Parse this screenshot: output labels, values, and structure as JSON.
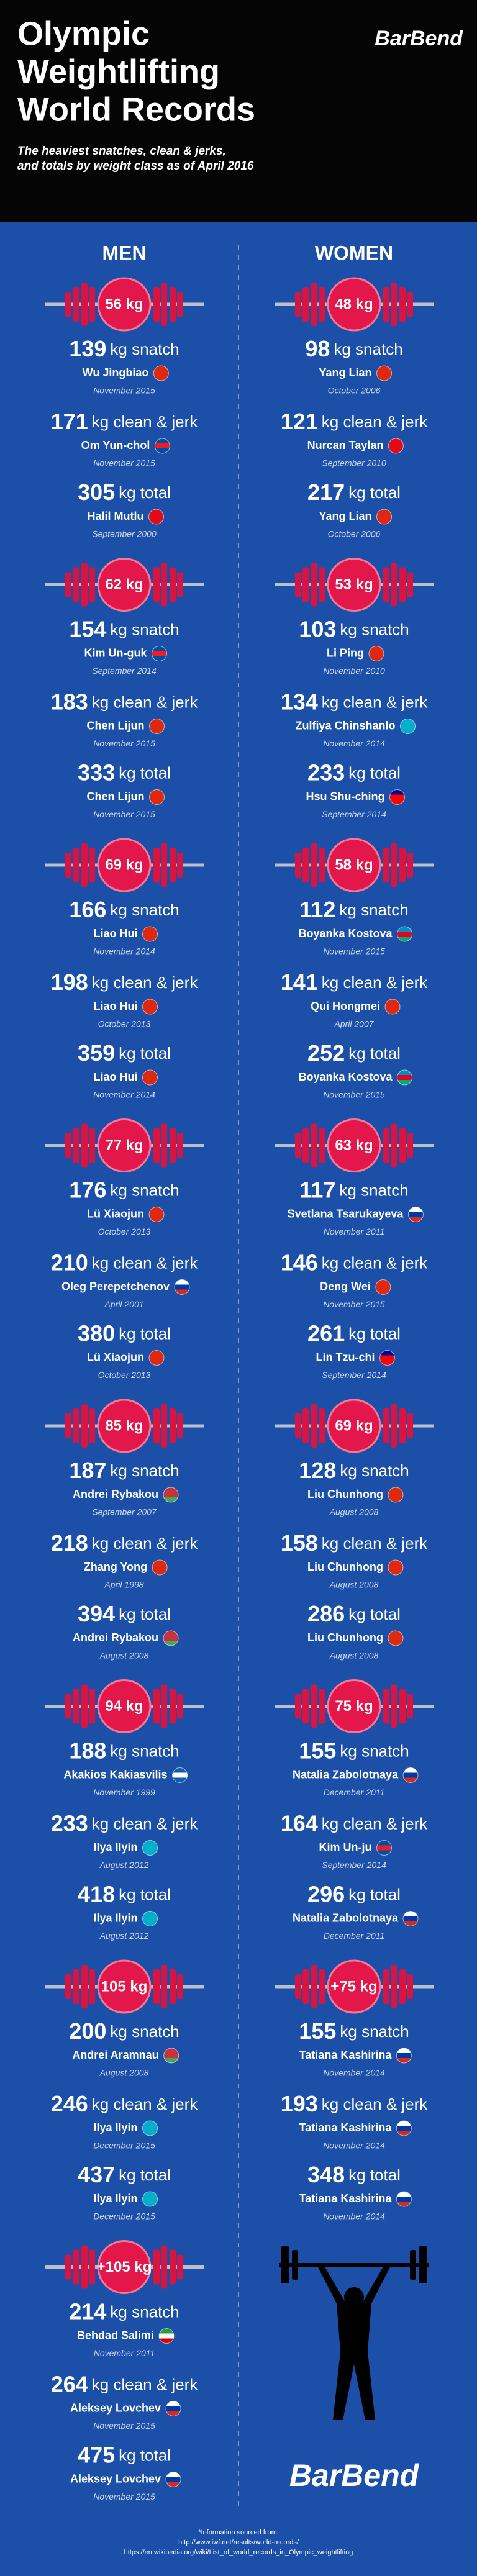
{
  "header": {
    "title": [
      "Olympic",
      "Weightlifting",
      "World Records"
    ],
    "logo": "BarBend",
    "subtitle": [
      "The heaviest snatches, clean & jerks,",
      "and totals by weight class as of April 2016"
    ]
  },
  "columns": [
    {
      "heading": "MEN",
      "classes": [
        {
          "class": "56 kg",
          "records": [
            {
              "value": 139,
              "lift": "kg snatch",
              "name": "Wu Jingbiao",
              "date": "November 2015",
              "flag": [
                "#de2910",
                "#de2910",
                "#de2910"
              ]
            },
            {
              "value": 171,
              "lift": "kg clean & jerk",
              "name": "Om Yun-chol",
              "date": "November 2015",
              "flag": [
                "#024fa2",
                "#ed1c27",
                "#024fa2"
              ]
            },
            {
              "value": 305,
              "lift": "kg total",
              "name": "Halil Mutlu",
              "date": "September 2000",
              "flag": [
                "#e30a17",
                "#e30a17",
                "#e30a17"
              ]
            }
          ]
        },
        {
          "class": "62 kg",
          "records": [
            {
              "value": 154,
              "lift": "kg snatch",
              "name": "Kim Un-guk",
              "date": "September 2014",
              "flag": [
                "#024fa2",
                "#ed1c27",
                "#024fa2"
              ]
            },
            {
              "value": 183,
              "lift": "kg clean & jerk",
              "name": "Chen Lijun",
              "date": "November 2015",
              "flag": [
                "#de2910",
                "#de2910",
                "#de2910"
              ]
            },
            {
              "value": 333,
              "lift": "kg total",
              "name": "Chen Lijun",
              "date": "November 2015",
              "flag": [
                "#de2910",
                "#de2910",
                "#de2910"
              ]
            }
          ]
        },
        {
          "class": "69 kg",
          "records": [
            {
              "value": 166,
              "lift": "kg snatch",
              "name": "Liao Hui",
              "date": "November 2014",
              "flag": [
                "#de2910",
                "#de2910",
                "#de2910"
              ]
            },
            {
              "value": 198,
              "lift": "kg clean & jerk",
              "name": "Liao Hui",
              "date": "October 2013",
              "flag": [
                "#de2910",
                "#de2910",
                "#de2910"
              ]
            },
            {
              "value": 359,
              "lift": "kg total",
              "name": "Liao Hui",
              "date": "November 2014",
              "flag": [
                "#de2910",
                "#de2910",
                "#de2910"
              ]
            }
          ]
        },
        {
          "class": "77 kg",
          "records": [
            {
              "value": 176,
              "lift": "kg snatch",
              "name": "Lü Xiaojun",
              "date": "October 2013",
              "flag": [
                "#de2910",
                "#de2910",
                "#de2910"
              ]
            },
            {
              "value": 210,
              "lift": "kg clean & jerk",
              "name": "Oleg Perepetchenov",
              "date": "April 2001",
              "flag": [
                "#ffffff",
                "#0039a6",
                "#d52b1e"
              ]
            },
            {
              "value": 380,
              "lift": "kg total",
              "name": "Lü Xiaojun",
              "date": "October 2013",
              "flag": [
                "#de2910",
                "#de2910",
                "#de2910"
              ]
            }
          ]
        },
        {
          "class": "85 kg",
          "records": [
            {
              "value": 187,
              "lift": "kg snatch",
              "name": "Andrei Rybakou",
              "date": "September 2007",
              "flag": [
                "#c8313e",
                "#c8313e",
                "#4aa657"
              ]
            },
            {
              "value": 218,
              "lift": "kg clean & jerk",
              "name": "Zhang Yong",
              "date": "April 1998",
              "flag": [
                "#de2910",
                "#de2910",
                "#de2910"
              ]
            },
            {
              "value": 394,
              "lift": "kg total",
              "name": "Andrei Rybakou",
              "date": "August 2008",
              "flag": [
                "#c8313e",
                "#c8313e",
                "#4aa657"
              ]
            }
          ]
        },
        {
          "class": "94 kg",
          "records": [
            {
              "value": 188,
              "lift": "kg snatch",
              "name": "Akakios Kakiasvilis",
              "date": "November 1999",
              "flag": [
                "#0d5eaf",
                "#ffffff",
                "#0d5eaf"
              ]
            },
            {
              "value": 233,
              "lift": "kg clean & jerk",
              "name": "Ilya Ilyin",
              "date": "August 2012",
              "flag": [
                "#00afca",
                "#00afca",
                "#00afca"
              ]
            },
            {
              "value": 418,
              "lift": "kg total",
              "name": "Ilya Ilyin",
              "date": "August 2012",
              "flag": [
                "#00afca",
                "#00afca",
                "#00afca"
              ]
            }
          ]
        },
        {
          "class": "105 kg",
          "records": [
            {
              "value": 200,
              "lift": "kg snatch",
              "name": "Andrei Aramnau",
              "date": "August 2008",
              "flag": [
                "#c8313e",
                "#c8313e",
                "#4aa657"
              ]
            },
            {
              "value": 246,
              "lift": "kg clean & jerk",
              "name": "Ilya Ilyin",
              "date": "December 2015",
              "flag": [
                "#00afca",
                "#00afca",
                "#00afca"
              ]
            },
            {
              "value": 437,
              "lift": "kg total",
              "name": "Ilya Ilyin",
              "date": "December 2015",
              "flag": [
                "#00afca",
                "#00afca",
                "#00afca"
              ]
            }
          ]
        },
        {
          "class": "+105 kg",
          "records": [
            {
              "value": 214,
              "lift": "kg snatch",
              "name": "Behdad Salimi",
              "date": "November 2011",
              "flag": [
                "#239f40",
                "#ffffff",
                "#da0000"
              ]
            },
            {
              "value": 264,
              "lift": "kg clean & jerk",
              "name": "Aleksey Lovchev",
              "date": "November 2015",
              "flag": [
                "#ffffff",
                "#0039a6",
                "#d52b1e"
              ]
            },
            {
              "value": 475,
              "lift": "kg total",
              "name": "Aleksey Lovchev",
              "date": "November 2015",
              "flag": [
                "#ffffff",
                "#0039a6",
                "#d52b1e"
              ]
            }
          ]
        }
      ]
    },
    {
      "heading": "WOMEN",
      "classes": [
        {
          "class": "48 kg",
          "records": [
            {
              "value": 98,
              "lift": "kg snatch",
              "name": "Yang Lian",
              "date": "October 2006",
              "flag": [
                "#de2910",
                "#de2910",
                "#de2910"
              ]
            },
            {
              "value": 121,
              "lift": "kg clean & jerk",
              "name": "Nurcan Taylan",
              "date": "September 2010",
              "flag": [
                "#e30a17",
                "#e30a17",
                "#e30a17"
              ]
            },
            {
              "value": 217,
              "lift": "kg total",
              "name": "Yang Lian",
              "date": "October 2006",
              "flag": [
                "#de2910",
                "#de2910",
                "#de2910"
              ]
            }
          ]
        },
        {
          "class": "53 kg",
          "records": [
            {
              "value": 103,
              "lift": "kg snatch",
              "name": "Li Ping",
              "date": "November 2010",
              "flag": [
                "#de2910",
                "#de2910",
                "#de2910"
              ]
            },
            {
              "value": 134,
              "lift": "kg clean & jerk",
              "name": "Zulfiya Chinshanlo",
              "date": "November 2014",
              "flag": [
                "#00afca",
                "#00afca",
                "#00afca"
              ]
            },
            {
              "value": 233,
              "lift": "kg total",
              "name": "Hsu Shu-ching",
              "date": "September 2014",
              "flag": [
                "#000095",
                "#fe0000",
                "#fe0000"
              ]
            }
          ]
        },
        {
          "class": "58 kg",
          "records": [
            {
              "value": 112,
              "lift": "kg snatch",
              "name": "Boyanka Kostova",
              "date": "November 2015",
              "flag": [
                "#0092bc",
                "#e4002b",
                "#00af66"
              ]
            },
            {
              "value": 141,
              "lift": "kg clean & jerk",
              "name": "Qui Hongmei",
              "date": "April 2007",
              "flag": [
                "#de2910",
                "#de2910",
                "#de2910"
              ]
            },
            {
              "value": 252,
              "lift": "kg total",
              "name": "Boyanka Kostova",
              "date": "November 2015",
              "flag": [
                "#0092bc",
                "#e4002b",
                "#00af66"
              ]
            }
          ]
        },
        {
          "class": "63 kg",
          "records": [
            {
              "value": 117,
              "lift": "kg snatch",
              "name": "Svetlana Tsarukayeva",
              "date": "November 2011",
              "flag": [
                "#ffffff",
                "#0039a6",
                "#d52b1e"
              ]
            },
            {
              "value": 146,
              "lift": "kg clean & jerk",
              "name": "Deng Wei",
              "date": "November 2015",
              "flag": [
                "#de2910",
                "#de2910",
                "#de2910"
              ]
            },
            {
              "value": 261,
              "lift": "kg total",
              "name": "Lin Tzu-chi",
              "date": "September 2014",
              "flag": [
                "#000095",
                "#fe0000",
                "#fe0000"
              ]
            }
          ]
        },
        {
          "class": "69 kg",
          "records": [
            {
              "value": 128,
              "lift": "kg snatch",
              "name": "Liu Chunhong",
              "date": "August 2008",
              "flag": [
                "#de2910",
                "#de2910",
                "#de2910"
              ]
            },
            {
              "value": 158,
              "lift": "kg clean & jerk",
              "name": "Liu Chunhong",
              "date": "August 2008",
              "flag": [
                "#de2910",
                "#de2910",
                "#de2910"
              ]
            },
            {
              "value": 286,
              "lift": "kg total",
              "name": "Liu Chunhong",
              "date": "August 2008",
              "flag": [
                "#de2910",
                "#de2910",
                "#de2910"
              ]
            }
          ]
        },
        {
          "class": "75 kg",
          "records": [
            {
              "value": 155,
              "lift": "kg snatch",
              "name": "Natalia Zabolotnaya",
              "date": "December 2011",
              "flag": [
                "#ffffff",
                "#0039a6",
                "#d52b1e"
              ]
            },
            {
              "value": 164,
              "lift": "kg clean & jerk",
              "name": "Kim Un-ju",
              "date": "September 2014",
              "flag": [
                "#024fa2",
                "#ed1c27",
                "#024fa2"
              ]
            },
            {
              "value": 296,
              "lift": "kg total",
              "name": "Natalia Zabolotnaya",
              "date": "December 2011",
              "flag": [
                "#ffffff",
                "#0039a6",
                "#d52b1e"
              ]
            }
          ]
        },
        {
          "class": "+75 kg",
          "records": [
            {
              "value": 155,
              "lift": "kg snatch",
              "name": "Tatiana Kashirina",
              "date": "November 2014",
              "flag": [
                "#ffffff",
                "#0039a6",
                "#d52b1e"
              ]
            },
            {
              "value": 193,
              "lift": "kg clean & jerk",
              "name": "Tatiana Kashirina",
              "date": "November 2014",
              "flag": [
                "#ffffff",
                "#0039a6",
                "#d52b1e"
              ]
            },
            {
              "value": 348,
              "lift": "kg total",
              "name": "Tatiana Kashirina",
              "date": "November 2014",
              "flag": [
                "#ffffff",
                "#0039a6",
                "#d52b1e"
              ]
            }
          ]
        }
      ]
    }
  ],
  "footer": {
    "logo": "BarBend",
    "sources": [
      "*Information sourced from:",
      "http://www.iwf.net/results/world-records/",
      "https://en.wikipedia.org/wiki/List_of_world_records_in_Olympic_weightlifting"
    ]
  }
}
